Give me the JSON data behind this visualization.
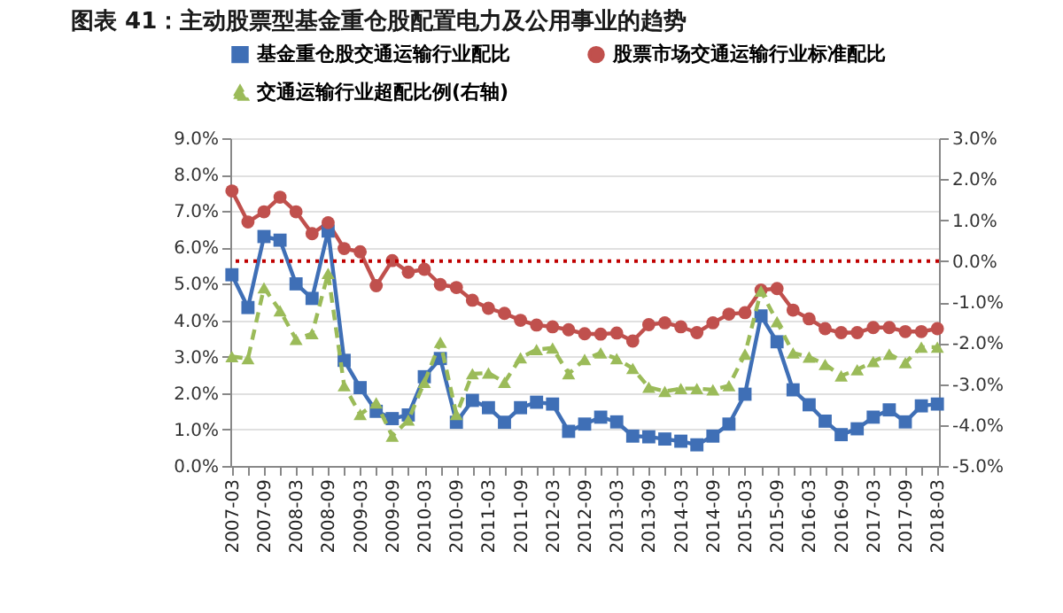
{
  "chart_data": {
    "type": "line",
    "title": "图表 41：主动股票型基金重仓股配置电力及公用事业的趋势",
    "categories": [
      "2007-03",
      null,
      "2007-09",
      null,
      "2008-03",
      null,
      "2008-09",
      null,
      "2009-03",
      null,
      "2009-09",
      null,
      "2010-03",
      null,
      "2010-09",
      null,
      "2011-03",
      null,
      "2011-09",
      null,
      "2012-03",
      null,
      "2012-09",
      null,
      "2013-03",
      null,
      "2013-09",
      null,
      "2014-03",
      null,
      "2014-09",
      null,
      "2015-03",
      null,
      "2015-09",
      null,
      "2016-03",
      null,
      "2016-09",
      null,
      "2017-03",
      null,
      "2017-09",
      null,
      "2018-03"
    ],
    "series": [
      {
        "name": "基金重仓股交通运输行业配比",
        "color": "#3f6fb6",
        "marker": "square",
        "line_style": "solid",
        "values": [
          5.25,
          4.35,
          6.3,
          6.2,
          5.0,
          4.6,
          6.45,
          2.9,
          2.15,
          1.5,
          1.3,
          1.4,
          2.45,
          2.95,
          1.2,
          1.8,
          1.6,
          1.2,
          1.6,
          1.75,
          1.7,
          0.95,
          1.15,
          1.34,
          1.21,
          0.82,
          0.8,
          0.74,
          0.68,
          0.58,
          0.82,
          1.15,
          1.97,
          4.12,
          3.41,
          2.09,
          1.68,
          1.23,
          0.86,
          1.02,
          1.34,
          1.54,
          1.21,
          1.65,
          1.7
        ]
      },
      {
        "name": "股票市场交通运输行业标准配比",
        "color": "#c0504d",
        "marker": "circle",
        "line_style": "solid",
        "values": [
          7.55,
          6.7,
          6.98,
          7.38,
          6.98,
          6.38,
          6.68,
          5.97,
          5.88,
          4.95,
          5.64,
          5.32,
          5.4,
          4.98,
          4.9,
          4.55,
          4.33,
          4.19,
          4.0,
          3.87,
          3.82,
          3.74,
          3.63,
          3.62,
          3.65,
          3.43,
          3.88,
          3.93,
          3.82,
          3.66,
          3.93,
          4.17,
          4.21,
          4.83,
          4.87,
          4.28,
          4.04,
          3.77,
          3.66,
          3.66,
          3.8,
          3.8,
          3.69,
          3.69,
          3.77
        ]
      },
      {
        "name": "交通运输行业超配比例(右轴)",
        "color": "#9bbb59",
        "marker": "triangle",
        "line_style": "dashed",
        "axis": "y2",
        "values": [
          -2.33,
          -2.38,
          -0.65,
          -1.21,
          -1.91,
          -1.77,
          -0.3,
          -3.04,
          -3.74,
          -3.46,
          -4.27,
          -3.88,
          -2.96,
          -1.98,
          -3.74,
          -2.75,
          -2.73,
          -2.96,
          -2.36,
          -2.16,
          -2.12,
          -2.75,
          -2.4,
          -2.24,
          -2.38,
          -2.62,
          -3.08,
          -3.18,
          -3.11,
          -3.11,
          -3.14,
          -3.04,
          -2.27,
          -0.73,
          -1.48,
          -2.24,
          -2.34,
          -2.52,
          -2.8,
          -2.65,
          -2.45,
          -2.27,
          -2.48,
          -2.1,
          -2.1
        ]
      }
    ],
    "ylim": [
      0,
      9
    ],
    "yticks": [
      {
        "value": 0,
        "label": "0.0%"
      },
      {
        "value": 1,
        "label": "1.0%"
      },
      {
        "value": 2,
        "label": "2.0%"
      },
      {
        "value": 3,
        "label": "3.0%"
      },
      {
        "value": 4,
        "label": "4.0%"
      },
      {
        "value": 5,
        "label": "5.0%"
      },
      {
        "value": 6,
        "label": "6.0%"
      },
      {
        "value": 7,
        "label": "7.0%"
      },
      {
        "value": 8,
        "label": "8.0%"
      },
      {
        "value": 9,
        "label": "9.0%"
      }
    ],
    "y2lim": [
      -5,
      3
    ],
    "y2ticks": [
      {
        "value": -5,
        "label": "-5.0%"
      },
      {
        "value": -4,
        "label": "-4.0%"
      },
      {
        "value": -3,
        "label": "-3.0%"
      },
      {
        "value": -2,
        "label": "-2.0%"
      },
      {
        "value": -1,
        "label": "-1.0%"
      },
      {
        "value": 0,
        "label": "0.0%"
      },
      {
        "value": 1,
        "label": "1.0%"
      },
      {
        "value": 2,
        "label": "2.0%"
      },
      {
        "value": 3,
        "label": "3.0%"
      }
    ],
    "ref_lines": [
      {
        "axis": "y2",
        "value": 0,
        "color": "#c00000",
        "line_style": "dotted"
      }
    ],
    "grid": "y",
    "legend": "top"
  }
}
